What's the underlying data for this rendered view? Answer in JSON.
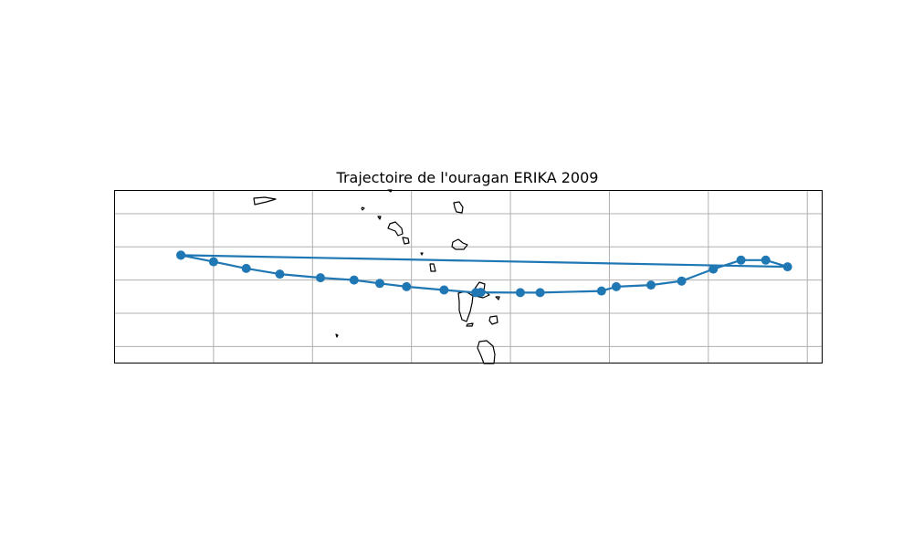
{
  "title": "Trajectoire de l'ouragan ERIKA 2009",
  "track_color": "#1f77b4",
  "chart_data": {
    "type": "map-track",
    "title": "Trajectoire de l'ouragan ERIKA 2009",
    "storm": "ERIKA",
    "year": 2009,
    "gridlines": true,
    "extent": {
      "lon": [
        -67.0,
        -59.85
      ],
      "lat": [
        14.5,
        19.7
      ]
    },
    "grid": {
      "lon": [
        -66,
        -65,
        -64,
        -63,
        -62,
        -61,
        -60
      ],
      "lat": [
        15,
        16,
        17,
        18,
        19
      ]
    },
    "track": [
      {
        "lon": -66.33,
        "lat": 17.75
      },
      {
        "lon": -66.0,
        "lat": 17.55
      },
      {
        "lon": -65.67,
        "lat": 17.35
      },
      {
        "lon": -65.33,
        "lat": 17.18
      },
      {
        "lon": -64.92,
        "lat": 17.07
      },
      {
        "lon": -64.58,
        "lat": 17.0
      },
      {
        "lon": -64.32,
        "lat": 16.9
      },
      {
        "lon": -64.05,
        "lat": 16.8
      },
      {
        "lon": -63.67,
        "lat": 16.7
      },
      {
        "lon": -63.35,
        "lat": 16.62
      },
      {
        "lon": -63.3,
        "lat": 16.63
      },
      {
        "lon": -62.9,
        "lat": 16.62
      },
      {
        "lon": -62.7,
        "lat": 16.62
      },
      {
        "lon": -62.08,
        "lat": 16.67
      },
      {
        "lon": -61.93,
        "lat": 16.8
      },
      {
        "lon": -61.58,
        "lat": 16.85
      },
      {
        "lon": -61.27,
        "lat": 16.97
      },
      {
        "lon": -60.95,
        "lat": 17.33
      },
      {
        "lon": -60.67,
        "lat": 17.6
      },
      {
        "lon": -60.42,
        "lat": 17.6
      },
      {
        "lon": -60.2,
        "lat": 17.4
      },
      {
        "lon": -66.33,
        "lat": 17.75
      }
    ]
  }
}
